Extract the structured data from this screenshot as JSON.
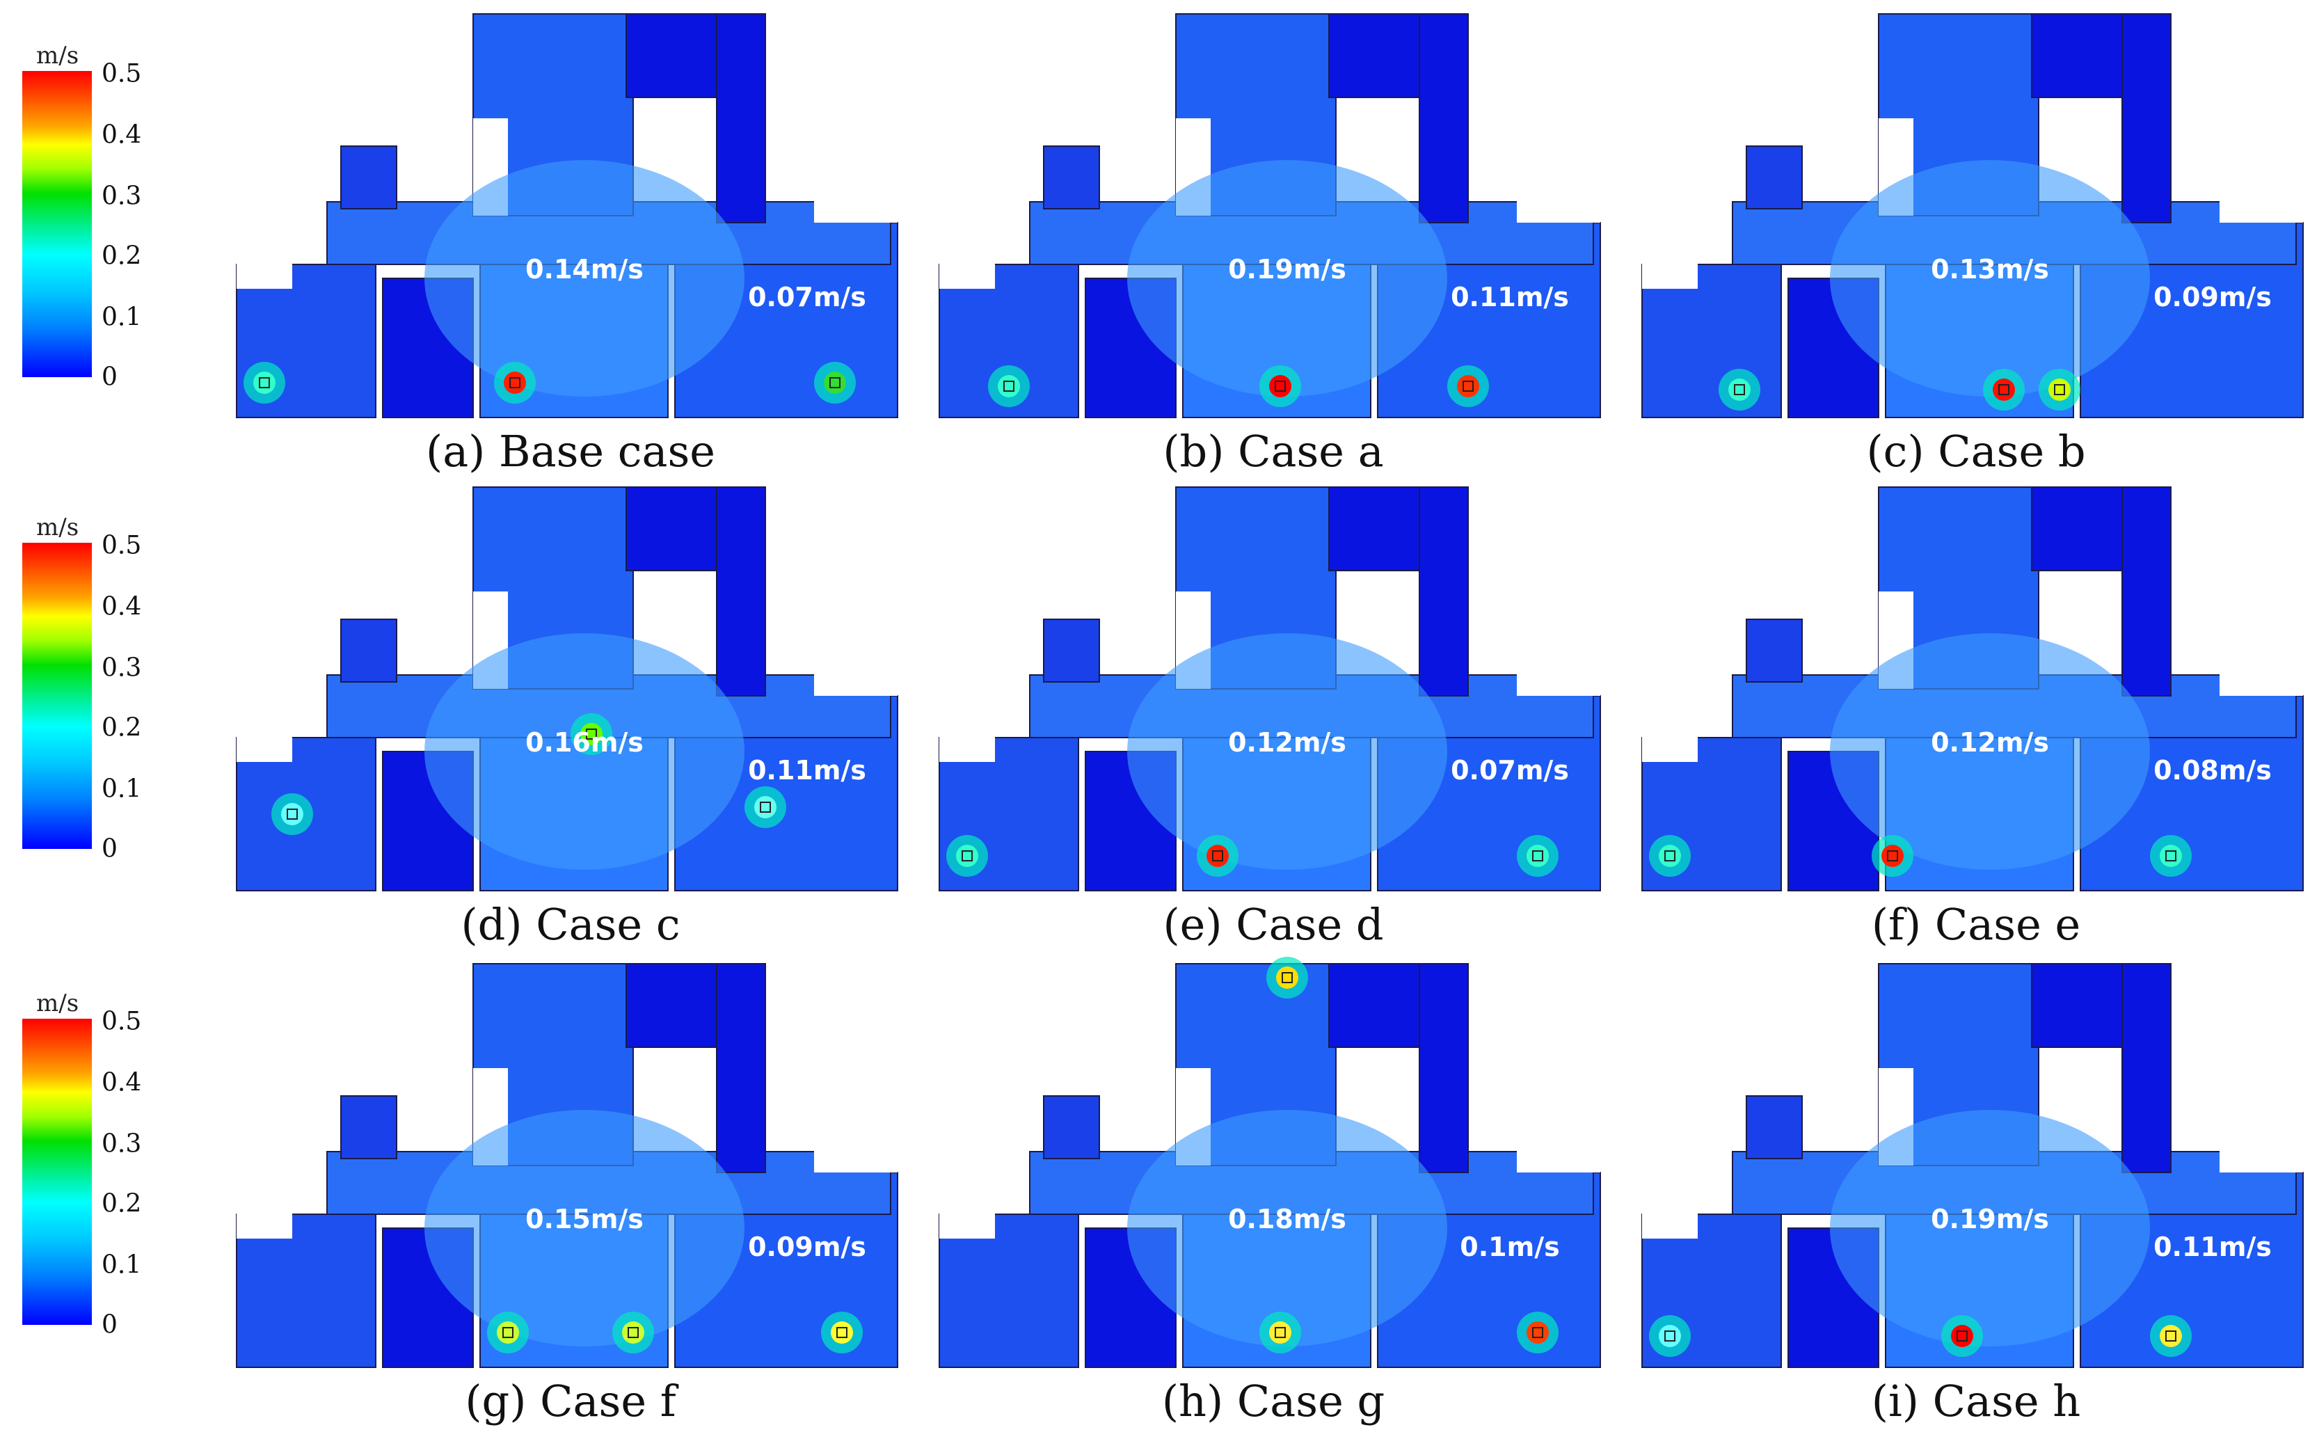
{
  "colorbar": {
    "unit": "m/s",
    "ticks": [
      "0.5",
      "0.4",
      "0.3",
      "0.2",
      "0.1",
      "0"
    ]
  },
  "panels": [
    {
      "caption": "(a) Base case",
      "left_room": "0.14m/s",
      "right_room": "0.07m/s"
    },
    {
      "caption": "(b) Case a",
      "left_room": "0.19m/s",
      "right_room": "0.11m/s"
    },
    {
      "caption": "(c) Case b",
      "left_room": "0.13m/s",
      "right_room": "0.09m/s"
    },
    {
      "caption": "(d) Case c",
      "left_room": "0.16m/s",
      "right_room": "0.11m/s"
    },
    {
      "caption": "(e) Case d",
      "left_room": "0.12m/s",
      "right_room": "0.07m/s"
    },
    {
      "caption": "(f) Case e",
      "left_room": "0.12m/s",
      "right_room": "0.08m/s"
    },
    {
      "caption": "(g) Case f",
      "left_room": "0.15m/s",
      "right_room": "0.09m/s"
    },
    {
      "caption": "(h) Case g",
      "left_room": "0.18m/s",
      "right_room": "0.1m/s"
    },
    {
      "caption": "(i) Case h",
      "left_room": "0.19m/s",
      "right_room": "0.11m/s"
    }
  ]
}
